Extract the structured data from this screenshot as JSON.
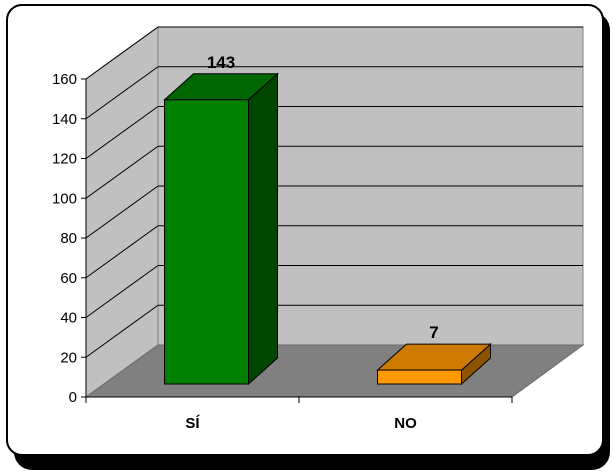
{
  "chart_data": {
    "type": "bar",
    "categories": [
      "SÍ",
      "NO"
    ],
    "values": [
      143,
      7
    ],
    "title": "",
    "xlabel": "",
    "ylabel": "",
    "ylim": [
      0,
      160
    ],
    "yticks": [
      0,
      20,
      40,
      60,
      80,
      100,
      120,
      140,
      160
    ],
    "ytick_labels": [
      "0",
      "20",
      "40",
      "60",
      "80",
      "100",
      "120",
      "140",
      "160"
    ],
    "data_labels": [
      "143",
      "7"
    ],
    "bar_colors": [
      "#008000",
      "#ff9900"
    ],
    "style": "3d-column",
    "grid": true,
    "legend": "none",
    "colors": {
      "back_wall": "#c0c0c0",
      "side_wall": "#c0c0c0",
      "floor": "#808080",
      "grid": "#000000"
    }
  }
}
